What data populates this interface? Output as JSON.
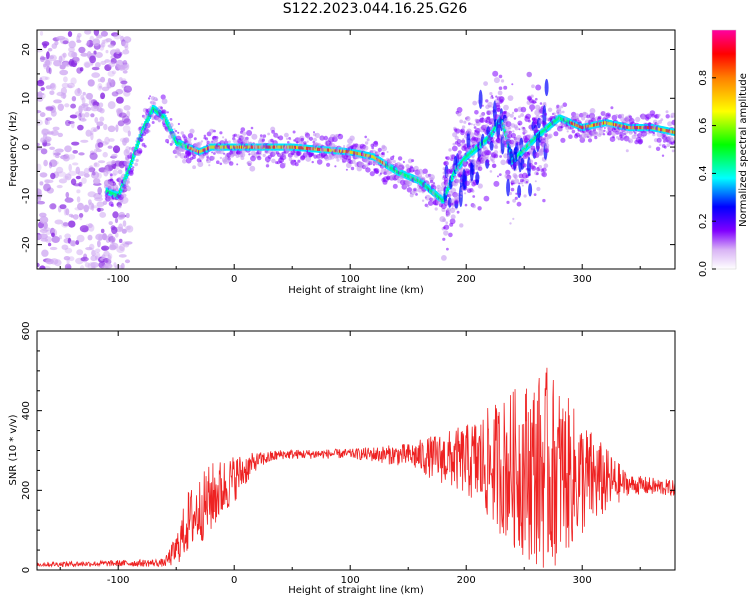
{
  "figure": {
    "title": "S122.2023.044.16.25.G26"
  },
  "chart_data": [
    {
      "type": "heatmap",
      "xlabel": "Height of straight line (km)",
      "ylabel": "Frequency (Hz)",
      "xlim": [
        -170,
        380
      ],
      "ylim": [
        -25,
        24
      ],
      "xticks": [
        -100,
        0,
        100,
        200,
        300
      ],
      "yticks": [
        -20,
        -10,
        0,
        10,
        20
      ],
      "colorbar": {
        "label": "Normalized spectral amplitude",
        "range": [
          0,
          1
        ],
        "ticks": [
          0.0,
          0.2,
          0.4,
          0.6,
          0.8
        ],
        "colormap": [
          "#ffffff",
          "#d9b3f5",
          "#8000ff",
          "#0000ff",
          "#00ffff",
          "#00ff00",
          "#ffff00",
          "#ff8000",
          "#ff0000",
          "#ff00a0"
        ]
      },
      "ridge": {
        "x": [
          -110,
          -100,
          -90,
          -80,
          -70,
          -60,
          -50,
          -40,
          -30,
          -20,
          0,
          50,
          100,
          120,
          140,
          160,
          180,
          190,
          200,
          220,
          230,
          240,
          260,
          280,
          300,
          320,
          340,
          360,
          380
        ],
        "y": [
          -9,
          -10,
          -4,
          3,
          8,
          6,
          1,
          0,
          -1,
          0,
          0,
          0,
          -1,
          -2,
          -5,
          -7,
          -11,
          -5,
          -2,
          2,
          6,
          -3,
          2,
          6,
          4,
          5,
          4,
          4,
          3
        ]
      },
      "noise_region_x": [
        -170,
        -90
      ]
    },
    {
      "type": "line",
      "xlabel": "Height of straight line (km)",
      "ylabel": "SNR (10 * v/v)",
      "xlim": [
        -170,
        380
      ],
      "ylim": [
        0,
        600
      ],
      "xticks": [
        -100,
        0,
        100,
        200,
        300
      ],
      "yticks": [
        0,
        200,
        400,
        600
      ],
      "series": [
        {
          "color": "#ee2222",
          "x": [
            -170,
            -120,
            -60,
            -50,
            -40,
            -20,
            0,
            20,
            40,
            100,
            150,
            200,
            240,
            270,
            300,
            340,
            380
          ],
          "y": [
            14,
            16,
            18,
            50,
            120,
            180,
            230,
            275,
            290,
            292,
            288,
            275,
            255,
            250,
            230,
            215,
            205
          ],
          "envelope_halfwidth": [
            6,
            7,
            10,
            40,
            80,
            90,
            60,
            20,
            12,
            12,
            30,
            90,
            200,
            260,
            150,
            25,
            20
          ]
        }
      ]
    }
  ]
}
